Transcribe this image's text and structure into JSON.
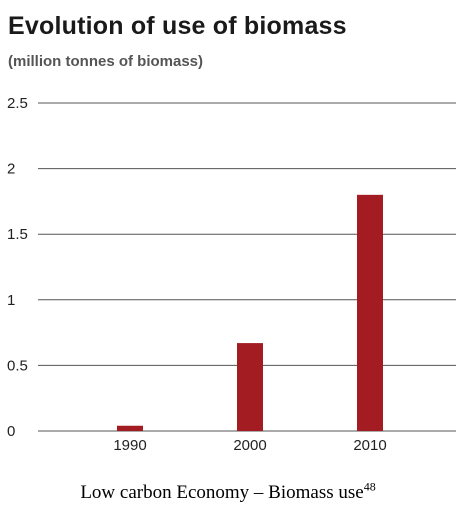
{
  "chart_data": {
    "type": "bar",
    "title": "Evolution of use of biomass",
    "subtitle": "(million tonnes of biomass)",
    "categories": [
      "1990",
      "2000",
      "2010"
    ],
    "values": [
      0.04,
      0.67,
      1.8
    ],
    "ylim": [
      0,
      2.5
    ],
    "yticks": [
      "0",
      "0.5",
      "1",
      "1.5",
      "2",
      "2.5"
    ],
    "grid": true,
    "bar_color": "#a31c22",
    "grid_color": "#555555"
  },
  "caption": {
    "text": "Low carbon Economy – Biomass use",
    "footnote": "48"
  }
}
